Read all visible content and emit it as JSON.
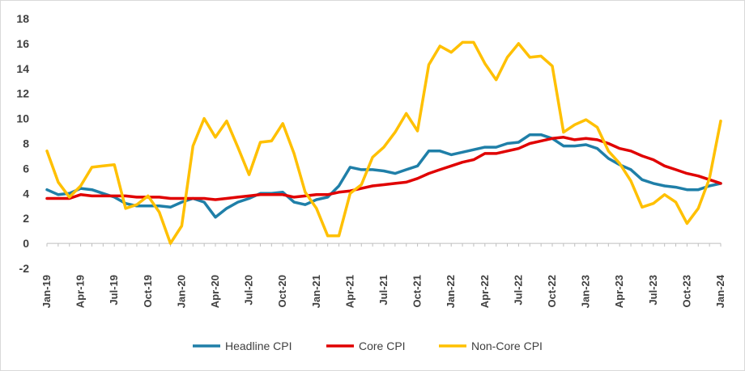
{
  "chart_data": {
    "type": "line",
    "title": "",
    "xlabel": "",
    "ylabel": "",
    "ylim": [
      -2,
      18
    ],
    "yticks": [
      -2,
      0,
      2,
      4,
      6,
      8,
      10,
      12,
      14,
      16,
      18
    ],
    "grid": false,
    "legend_position": "bottom",
    "x_tick_labels": [
      "Jan-19",
      "Apr-19",
      "Jul-19",
      "Oct-19",
      "Jan-20",
      "Apr-20",
      "Jul-20",
      "Oct-20",
      "Jan-21",
      "Apr-21",
      "Jul-21",
      "Oct-21",
      "Jan-22",
      "Apr-22",
      "Jul-22",
      "Oct-22",
      "Jan-23",
      "Apr-23",
      "Jul-23",
      "Oct-23",
      "Jan-24"
    ],
    "x": [
      "Jan-19",
      "Feb-19",
      "Mar-19",
      "Apr-19",
      "May-19",
      "Jun-19",
      "Jul-19",
      "Aug-19",
      "Sep-19",
      "Oct-19",
      "Nov-19",
      "Dec-19",
      "Jan-20",
      "Feb-20",
      "Mar-20",
      "Apr-20",
      "May-20",
      "Jun-20",
      "Jul-20",
      "Aug-20",
      "Sep-20",
      "Oct-20",
      "Nov-20",
      "Dec-20",
      "Jan-21",
      "Feb-21",
      "Mar-21",
      "Apr-21",
      "May-21",
      "Jun-21",
      "Jul-21",
      "Aug-21",
      "Sep-21",
      "Oct-21",
      "Nov-21",
      "Dec-21",
      "Jan-22",
      "Feb-22",
      "Mar-22",
      "Apr-22",
      "May-22",
      "Jun-22",
      "Jul-22",
      "Aug-22",
      "Sep-22",
      "Oct-22",
      "Nov-22",
      "Dec-22",
      "Jan-23",
      "Feb-23",
      "Mar-23",
      "Apr-23",
      "May-23",
      "Jun-23",
      "Jul-23",
      "Aug-23",
      "Sep-23",
      "Oct-23",
      "Nov-23",
      "Dec-23",
      "Jan-24"
    ],
    "series": [
      {
        "name": "Headline CPI",
        "color": "#1f7fa8",
        "values": [
          4.3,
          3.9,
          4.0,
          4.4,
          4.3,
          4.0,
          3.7,
          3.2,
          3.0,
          3.0,
          3.0,
          2.9,
          3.3,
          3.6,
          3.3,
          2.1,
          2.8,
          3.3,
          3.6,
          4.0,
          4.0,
          4.1,
          3.3,
          3.1,
          3.5,
          3.7,
          4.6,
          6.1,
          5.9,
          5.9,
          5.8,
          5.6,
          5.9,
          6.2,
          7.4,
          7.4,
          7.1,
          7.3,
          7.5,
          7.7,
          7.7,
          8.0,
          8.1,
          8.7,
          8.7,
          8.4,
          7.8,
          7.8,
          7.9,
          7.6,
          6.8,
          6.3,
          5.9,
          5.1,
          4.8,
          4.6,
          4.5,
          4.3,
          4.3,
          4.6,
          4.8
        ]
      },
      {
        "name": "Core CPI",
        "color": "#e00000",
        "values": [
          3.6,
          3.6,
          3.6,
          3.9,
          3.8,
          3.8,
          3.8,
          3.8,
          3.7,
          3.7,
          3.7,
          3.6,
          3.6,
          3.6,
          3.6,
          3.5,
          3.6,
          3.7,
          3.8,
          3.9,
          3.9,
          3.9,
          3.7,
          3.8,
          3.9,
          3.9,
          4.1,
          4.2,
          4.4,
          4.6,
          4.7,
          4.8,
          4.9,
          5.2,
          5.6,
          5.9,
          6.2,
          6.5,
          6.7,
          7.2,
          7.2,
          7.4,
          7.6,
          8.0,
          8.2,
          8.4,
          8.5,
          8.3,
          8.4,
          8.3,
          8.0,
          7.6,
          7.4,
          7.0,
          6.7,
          6.2,
          5.9,
          5.6,
          5.4,
          5.1,
          4.8
        ]
      },
      {
        "name": "Non-Core CPI",
        "color": "#ffc000",
        "values": [
          7.4,
          4.9,
          3.7,
          4.6,
          6.1,
          6.2,
          6.3,
          2.8,
          3.1,
          3.8,
          2.5,
          0.0,
          1.4,
          7.8,
          10.0,
          8.5,
          9.8,
          7.7,
          5.5,
          8.1,
          8.2,
          9.6,
          7.2,
          4.1,
          2.8,
          0.6,
          0.6,
          4.0,
          4.7,
          6.9,
          7.7,
          8.9,
          10.4,
          9.0,
          14.3,
          15.8,
          15.3,
          16.1,
          16.1,
          14.4,
          13.1,
          14.9,
          16.0,
          14.9,
          15.0,
          14.2,
          8.9,
          9.5,
          9.9,
          9.3,
          7.4,
          6.4,
          5.0,
          2.9,
          3.2,
          3.9,
          3.3,
          1.6,
          2.8,
          5.2,
          9.8
        ]
      }
    ]
  }
}
